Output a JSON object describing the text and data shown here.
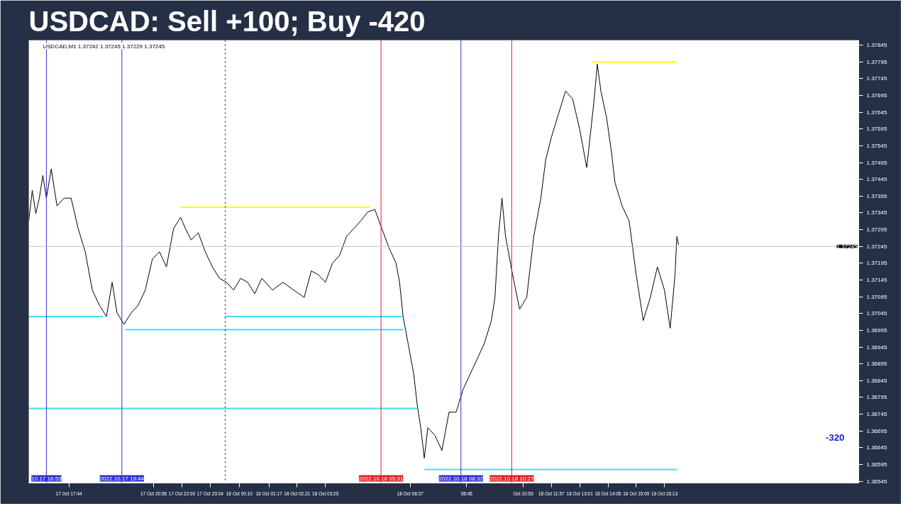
{
  "chart_data": {
    "type": "line",
    "title": "USDCAD: Sell +100; Buy -420",
    "annotations": [
      "USDCAD,M1  1.37242 1.37245 1.37229 1.37245",
      "-320"
    ],
    "grid": false,
    "line_style": "solid",
    "xlim": [
      "2022-10-17T16:13",
      "2022-10-18T23:33"
    ],
    "ylim": [
      1.3654,
      1.3786
    ],
    "xticks": [
      {
        "value": "2022-10-17T17:44",
        "label": "17 Oct 17:44"
      },
      {
        "value": "2022-10-17T20:56",
        "label": "17 Oct 20:56"
      },
      {
        "value": "2022-10-17T22:00",
        "label": "17 Oct 22:00"
      },
      {
        "value": "2022-10-17T23:04",
        "label": "17 Oct 23:04"
      },
      {
        "value": "2022-10-18T00:10",
        "label": "18 Oct 00:10"
      },
      {
        "value": "2022-10-18T01:17",
        "label": "18 Oct 01:17"
      },
      {
        "value": "2022-10-18T02:21",
        "label": "18 Oct 02:21"
      },
      {
        "value": "2022-10-18T03:25",
        "label": "18 Oct 03:25"
      },
      {
        "value": "2022-10-18T06:37",
        "label": "18 Oct 06:37"
      },
      {
        "value": "2022-10-18T08:45",
        "label": "08:45"
      },
      {
        "value": "2022-10-18T10:53",
        "label": "Oct 10:53"
      },
      {
        "value": "2022-10-18T11:57",
        "label": "18 Oct 11:57"
      },
      {
        "value": "2022-10-18T13:01",
        "label": "18 Oct 13:01"
      },
      {
        "value": "2022-10-18T14:05",
        "label": "18 Oct 14:05"
      },
      {
        "value": "2022-10-18T15:09",
        "label": "18 Oct 15:09"
      },
      {
        "value": "2022-10-18T16:13",
        "label": "18 Oct 16:13"
      }
    ],
    "yticks": [
      1.36545,
      1.36595,
      1.36645,
      1.36695,
      1.36745,
      1.36795,
      1.36845,
      1.36895,
      1.36945,
      1.36995,
      1.37045,
      1.37095,
      1.37145,
      1.37195,
      1.37245,
      1.37295,
      1.37345,
      1.37395,
      1.37445,
      1.37495,
      1.37545,
      1.37595,
      1.37645,
      1.37695,
      1.37745,
      1.37795,
      1.37845
    ],
    "ref_lines": [
      {
        "axis": "x",
        "value": "2022-10-17T16:53",
        "label": "10.17 16:53",
        "color": "#3030d0",
        "line_style": "solid"
      },
      {
        "axis": "x",
        "value": "2022-10-17T19:44",
        "label": "2022.10.17 19:44",
        "color": "#3030d0",
        "line_style": "solid"
      },
      {
        "axis": "x",
        "value": "2022-10-17T23:38",
        "label": null,
        "color": "#000000",
        "line_style": "dotted"
      },
      {
        "axis": "x",
        "value": "2022-10-18T05:31",
        "label": "2022.10.18 05:31",
        "color": "#e02020",
        "line_style": "solid"
      },
      {
        "axis": "x",
        "value": "2022-10-18T08:32",
        "label": "2022.10.18 08:32",
        "color": "#3030d0",
        "line_style": "solid"
      },
      {
        "axis": "x",
        "value": "2022-10-18T10:27",
        "label": "2022.10.18 10:27",
        "color": "#e02020",
        "line_style": "solid"
      },
      {
        "axis": "y",
        "value": 1.37245,
        "label": "1.37245",
        "color": "#c0c0c0",
        "line_style": "solid"
      }
    ],
    "series": [
      {
        "color": "#000000",
        "x": [
          "2022-10-17T16:13",
          "2022-10-17T16:21",
          "2022-10-17T16:29",
          "2022-10-17T16:37",
          "2022-10-17T16:45",
          "2022-10-17T16:53",
          "2022-10-17T17:04",
          "2022-10-17T17:17",
          "2022-10-17T17:33",
          "2022-10-17T17:49",
          "2022-10-17T18:05",
          "2022-10-17T18:21",
          "2022-10-17T18:37",
          "2022-10-17T18:53",
          "2022-10-17T19:09",
          "2022-10-17T19:22",
          "2022-10-17T19:33",
          "2022-10-17T19:49",
          "2022-10-17T20:05",
          "2022-10-17T20:21",
          "2022-10-17T20:37",
          "2022-10-17T20:53",
          "2022-10-17T21:09",
          "2022-10-17T21:25",
          "2022-10-17T21:41",
          "2022-10-17T21:57",
          "2022-10-17T22:08",
          "2022-10-17T22:21",
          "2022-10-17T22:37",
          "2022-10-17T22:53",
          "2022-10-17T23:09",
          "2022-10-17T23:25",
          "2022-10-17T23:41",
          "2022-10-17T23:57",
          "2022-10-18T00:13",
          "2022-10-18T00:29",
          "2022-10-18T00:45",
          "2022-10-18T01:01",
          "2022-10-18T01:25",
          "2022-10-18T01:49",
          "2022-10-18T02:13",
          "2022-10-18T02:37",
          "2022-10-18T02:53",
          "2022-10-18T03:09",
          "2022-10-18T03:25",
          "2022-10-18T03:41",
          "2022-10-18T03:57",
          "2022-10-18T04:13",
          "2022-10-18T04:29",
          "2022-10-18T04:45",
          "2022-10-18T05:01",
          "2022-10-18T05:17",
          "2022-10-18T05:33",
          "2022-10-18T05:49",
          "2022-10-18T06:05",
          "2022-10-18T06:13",
          "2022-10-18T06:21",
          "2022-10-18T06:34",
          "2022-10-18T06:45",
          "2022-10-18T06:53",
          "2022-10-18T07:01",
          "2022-10-18T07:09",
          "2022-10-18T07:17",
          "2022-10-18T07:33",
          "2022-10-18T07:49",
          "2022-10-18T08:05",
          "2022-10-18T08:21",
          "2022-10-18T08:37",
          "2022-10-18T08:53",
          "2022-10-18T09:09",
          "2022-10-18T09:25",
          "2022-10-18T09:41",
          "2022-10-18T09:49",
          "2022-10-18T09:57",
          "2022-10-18T10:05",
          "2022-10-18T10:13",
          "2022-10-18T10:29",
          "2022-10-18T10:45",
          "2022-10-18T11:01",
          "2022-10-18T11:17",
          "2022-10-18T11:33",
          "2022-10-18T11:44",
          "2022-10-18T11:57",
          "2022-10-18T12:13",
          "2022-10-18T12:29",
          "2022-10-18T12:45",
          "2022-10-18T13:01",
          "2022-10-18T13:17",
          "2022-10-18T13:33",
          "2022-10-18T13:41",
          "2022-10-18T13:49",
          "2022-10-18T14:02",
          "2022-10-18T14:13",
          "2022-10-18T14:21",
          "2022-10-18T14:37",
          "2022-10-18T14:53",
          "2022-10-18T15:09",
          "2022-10-18T15:25",
          "2022-10-18T15:41",
          "2022-10-18T15:57",
          "2022-10-18T16:13",
          "2022-10-18T16:26",
          "2022-10-18T16:37",
          "2022-10-18T16:41",
          "2022-10-18T16:45"
        ],
        "values": [
          1.37321,
          1.37412,
          1.37343,
          1.37389,
          1.37457,
          1.37389,
          1.37476,
          1.37366,
          1.37389,
          1.37389,
          1.37298,
          1.37229,
          1.37115,
          1.3707,
          1.37036,
          1.37138,
          1.37047,
          1.37013,
          1.37047,
          1.3707,
          1.37115,
          1.37207,
          1.37229,
          1.37184,
          1.37298,
          1.37332,
          1.37298,
          1.37264,
          1.37286,
          1.37229,
          1.37184,
          1.3715,
          1.37138,
          1.37115,
          1.3715,
          1.37138,
          1.37104,
          1.3715,
          1.37115,
          1.37138,
          1.37115,
          1.37093,
          1.37172,
          1.37161,
          1.37138,
          1.37195,
          1.37218,
          1.37275,
          1.37298,
          1.37321,
          1.37348,
          1.37355,
          1.37298,
          1.37241,
          1.37195,
          1.37138,
          1.37036,
          1.36944,
          1.36865,
          1.36773,
          1.36705,
          1.36614,
          1.36705,
          1.36682,
          1.36637,
          1.36751,
          1.36751,
          1.36819,
          1.36865,
          1.3691,
          1.36956,
          1.37024,
          1.37093,
          1.37275,
          1.37389,
          1.37275,
          1.37161,
          1.37058,
          1.37093,
          1.37275,
          1.37389,
          1.37503,
          1.37571,
          1.3764,
          1.37708,
          1.37685,
          1.37594,
          1.3748,
          1.37674,
          1.37788,
          1.37708,
          1.37628,
          1.37526,
          1.37435,
          1.37366,
          1.37321,
          1.37161,
          1.37024,
          1.37093,
          1.37184,
          1.37115,
          1.37001,
          1.37161,
          1.37275,
          1.3725
        ]
      },
      {
        "color": "#ffff00",
        "x": [
          "2022-10-17T21:57",
          "2022-10-18T05:05"
        ],
        "values": [
          1.37362,
          1.37362
        ]
      },
      {
        "color": "#ffff00",
        "x": [
          "2022-10-18T13:29",
          "2022-10-18T16:41"
        ],
        "values": [
          1.37795,
          1.37795
        ]
      },
      {
        "color": "#40e0f0",
        "x": [
          "2022-10-17T16:13",
          "2022-10-17T19:01"
        ],
        "values": [
          1.37036,
          1.37036
        ]
      },
      {
        "color": "#40e0f0",
        "x": [
          "2022-10-17T23:38",
          "2022-10-18T06:21"
        ],
        "values": [
          1.37036,
          1.37036
        ]
      },
      {
        "color": "#40e0f0",
        "x": [
          "2022-10-17T19:52",
          "2022-10-18T06:21"
        ],
        "values": [
          1.36997,
          1.36997
        ]
      },
      {
        "color": "#40e0f0",
        "x": [
          "2022-10-17T16:13",
          "2022-10-18T06:53"
        ],
        "values": [
          1.36762,
          1.36762
        ]
      },
      {
        "color": "#40e0f0",
        "x": [
          "2022-10-18T07:09",
          "2022-10-18T16:41"
        ],
        "values": [
          1.3658,
          1.3658
        ]
      }
    ]
  }
}
